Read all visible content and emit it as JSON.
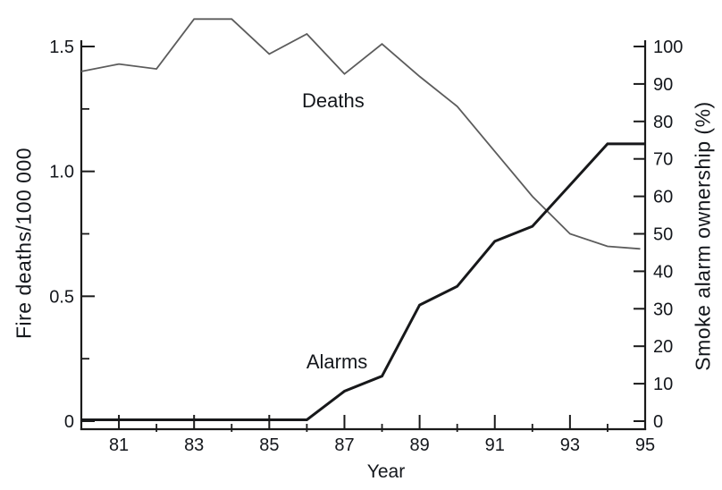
{
  "figure": {
    "background": "#ffffff",
    "text_color": "#14171c",
    "axis_color": "#1a1a1a"
  },
  "chart_data": {
    "type": "line",
    "title": "",
    "xlabel": "Year",
    "x_range": [
      80,
      95
    ],
    "x": [
      80,
      81,
      82,
      83,
      84,
      85,
      86,
      87,
      88,
      89,
      90,
      91,
      92,
      93,
      94,
      95
    ],
    "x_ticks_major": {
      "values": [
        81,
        83,
        85,
        87,
        89,
        91,
        93,
        95
      ],
      "labels": [
        "81",
        "83",
        "85",
        "87",
        "89",
        "91",
        "93",
        "95"
      ]
    },
    "x_ticks_minor": [
      82,
      84,
      86,
      88,
      90,
      92,
      94
    ],
    "left_axis": {
      "label": "Fire deaths/100 000",
      "range": [
        0,
        1.5
      ],
      "ticks": {
        "values": [
          0,
          0.5,
          1.0,
          1.5
        ],
        "labels": [
          "0",
          "0.5",
          "1.0",
          "1.5"
        ]
      },
      "minor_ticks": [
        0.25,
        0.75,
        1.25
      ]
    },
    "right_axis": {
      "label": "Smoke alarm ownership (%)",
      "range": [
        0,
        100
      ],
      "ticks": {
        "values": [
          0,
          10,
          20,
          30,
          40,
          50,
          60,
          70,
          80,
          90,
          100
        ],
        "labels": [
          "0",
          "10",
          "20",
          "30",
          "40",
          "50",
          "60",
          "70",
          "80",
          "90",
          "100"
        ]
      }
    },
    "series": [
      {
        "name": "Deaths",
        "axis": "left",
        "color": "#5c5c5c",
        "stroke_width": 1.8,
        "values": [
          1.4,
          1.43,
          1.41,
          1.61,
          1.61,
          1.47,
          1.55,
          1.39,
          1.51,
          1.38,
          1.26,
          1.08,
          0.9,
          0.75,
          0.7,
          0.69
        ]
      },
      {
        "name": "Alarms",
        "axis": "right",
        "color": "#17181a",
        "stroke_width": 3,
        "values": [
          0,
          0,
          0,
          0,
          0,
          0,
          0,
          8,
          12,
          31,
          36,
          48,
          52,
          63,
          74,
          74
        ]
      }
    ],
    "annotations": [
      {
        "text": "Deaths",
        "axis": "left",
        "anchor_year": 86.7,
        "anchor_value": 1.28
      },
      {
        "text": "Alarms",
        "axis": "right",
        "anchor_year": 86.8,
        "anchor_value": 15.7
      }
    ],
    "grid": false,
    "legend": "none (inline series labels)"
  }
}
